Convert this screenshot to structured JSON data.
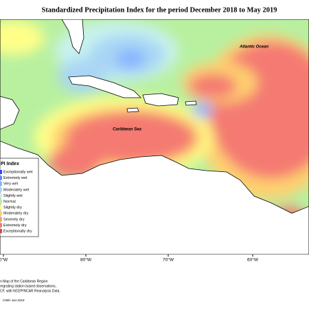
{
  "title": "Standardized Precipitation Index for the period December 2018 to May 2019",
  "map": {
    "labels": [
      "Atlantic Ocean",
      "Caribbean Sea"
    ],
    "longitude_labels": [
      "0°W",
      "80°W",
      "70°W",
      "60°W"
    ]
  },
  "legend": {
    "title": "PI Index",
    "items": [
      {
        "label": "Exceptionally wet",
        "color": "#2a4cff"
      },
      {
        "label": "Extremely wet",
        "color": "#5a86ff"
      },
      {
        "label": "Very wet",
        "color": "#86b4ff"
      },
      {
        "label": "Moderately wet",
        "color": "#a9d6f5"
      },
      {
        "label": "Slightly wet",
        "color": "#c8f2ee"
      },
      {
        "label": "Normal",
        "color": "#b8f0a0"
      },
      {
        "label": "Slightly dry",
        "color": "#ffff88"
      },
      {
        "label": "Moderately dry",
        "color": "#ffd070"
      },
      {
        "label": "Severely dry",
        "color": "#ffa060"
      },
      {
        "label": "Extremely dry",
        "color": "#f47a72"
      },
      {
        "label": "Exceptionally dry",
        "color": "#d84848"
      }
    ]
  },
  "footer": {
    "lines": [
      "n Map of the Caribbean Region",
      "regrating station based observations,",
      "CF, with NCEP/NCAR Reanalysis Data."
    ],
    "credit": "CIMH Jun-2019"
  }
}
